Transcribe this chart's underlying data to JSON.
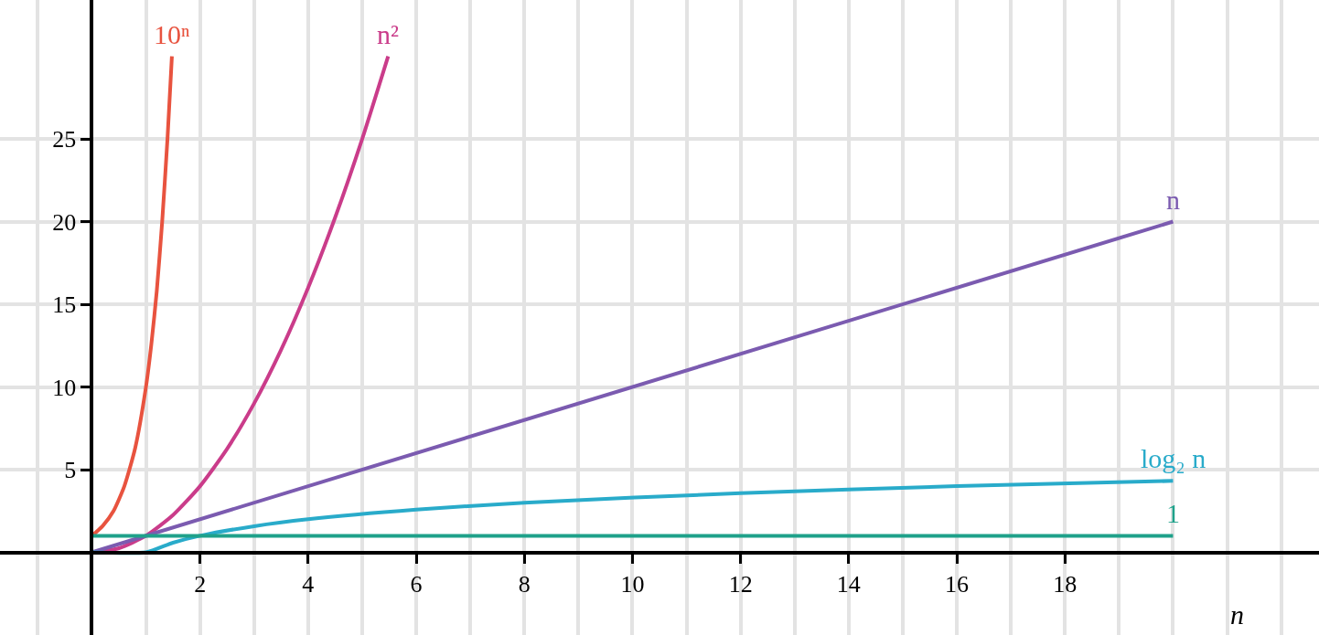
{
  "chart_data": {
    "type": "line",
    "xlabel": "n",
    "xlim": [
      -1.7,
      22.7
    ],
    "ylim": [
      -5,
      33.4
    ],
    "xticks": [
      2,
      4,
      6,
      8,
      10,
      12,
      14,
      16,
      18
    ],
    "yticks": [
      5,
      10,
      15,
      20,
      25
    ],
    "grid": true,
    "legend": false,
    "marker": "none",
    "line_style": "solid",
    "series": [
      {
        "name": "10ⁿ",
        "color": "#e8533f",
        "x": [
          0,
          0.2,
          0.4,
          0.6,
          0.8,
          1,
          1.1,
          1.2,
          1.3,
          1.4,
          1.48
        ],
        "values": [
          1,
          1.6,
          2.5,
          4,
          6.3,
          10,
          12.6,
          15.8,
          20,
          25.1,
          30
        ]
      },
      {
        "name": "n²",
        "color": "#ca3c8a",
        "x": [
          0,
          0.5,
          1,
          1.5,
          2,
          2.5,
          3,
          3.5,
          4,
          4.5,
          5,
          5.48
        ],
        "values": [
          0,
          0.25,
          1,
          2.25,
          4,
          6.25,
          9,
          12.25,
          16,
          20.25,
          25,
          30
        ]
      },
      {
        "name": "n",
        "color": "#7b5bb0",
        "x": [
          0,
          20
        ],
        "values": [
          0,
          20
        ]
      },
      {
        "name": "log₂ n",
        "color": "#29abca",
        "x": [
          0,
          1,
          1.5,
          2,
          3,
          4,
          6,
          8,
          12,
          16,
          20
        ],
        "values": [
          0,
          0,
          0.58,
          1,
          1.58,
          2,
          2.58,
          3,
          3.58,
          4,
          4.32
        ]
      },
      {
        "name": "1",
        "color": "#1fa18a",
        "x": [
          0,
          20
        ],
        "values": [
          1,
          1
        ]
      }
    ]
  }
}
